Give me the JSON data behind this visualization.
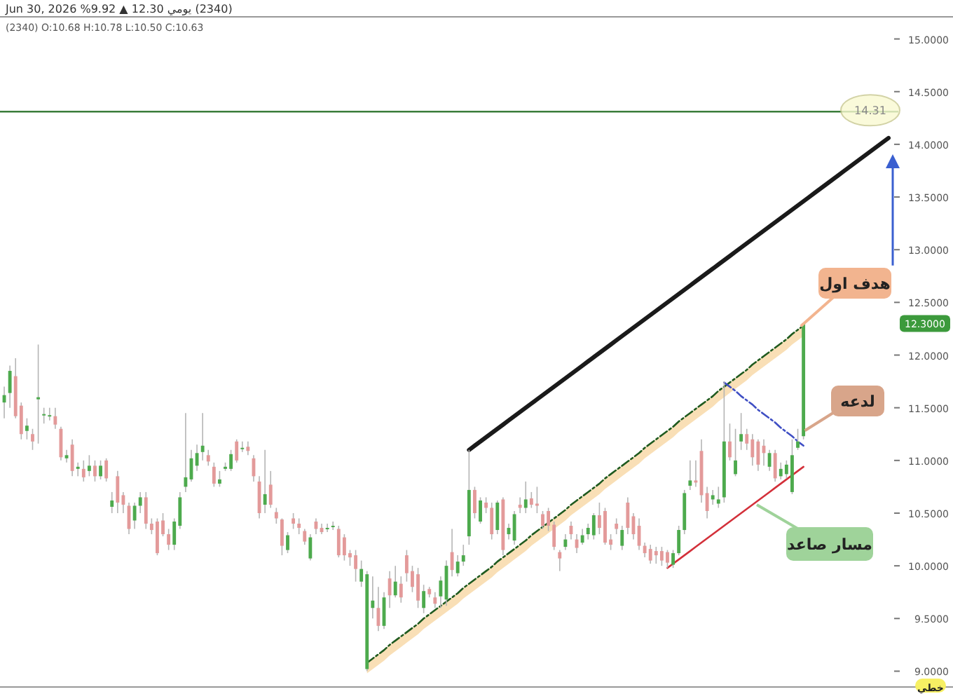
{
  "chart_data": {
    "type": "candlestick",
    "title": "(2340) يومي 12.30 ▲ 9.92% Jun 30, 2026",
    "subtitle": "(2340) O:10.68 H:10.78 L:10.50 C:10.63",
    "categories": [
      null,
      null,
      null,
      null,
      null,
      null,
      null,
      null,
      null,
      null,
      null,
      null,
      null,
      null,
      null,
      null,
      null,
      null,
      null,
      null,
      null,
      null,
      null,
      null,
      null,
      null,
      null,
      null,
      null,
      null,
      null,
      null,
      null,
      null,
      null,
      null,
      null,
      null,
      null,
      null,
      null,
      null,
      null,
      null,
      null,
      null,
      null,
      null,
      null,
      null,
      null,
      null,
      null,
      null,
      null,
      null,
      null,
      null,
      null,
      null,
      null,
      null,
      null,
      null,
      null,
      null,
      null,
      null,
      null,
      null,
      null,
      null,
      null,
      null,
      null,
      null,
      null,
      null,
      null,
      null,
      null,
      null,
      null,
      null,
      null,
      null,
      null,
      null,
      null,
      null,
      null,
      null,
      null,
      null,
      null,
      null,
      null,
      null,
      null,
      null,
      null,
      null,
      null,
      null,
      null,
      null,
      null,
      null,
      null,
      null,
      null,
      null,
      null,
      null,
      null,
      null,
      null,
      null,
      null,
      null,
      null,
      null,
      null,
      null,
      null,
      null,
      null,
      null,
      null,
      null,
      null,
      null,
      null,
      null,
      null,
      null,
      null,
      null,
      null,
      null,
      null,
      null,
      null,
      null,
      null,
      null,
      null,
      null,
      null,
      null,
      null,
      null,
      null,
      null,
      null,
      null,
      null
    ],
    "ohlc": [
      [
        11.55,
        11.7,
        11.4,
        11.62
      ],
      [
        11.64,
        11.9,
        11.5,
        11.85
      ],
      [
        11.8,
        11.97,
        11.4,
        11.42
      ],
      [
        11.52,
        11.55,
        11.2,
        11.25
      ],
      [
        11.28,
        11.4,
        11.2,
        11.33
      ],
      [
        11.25,
        11.3,
        11.1,
        11.18
      ],
      [
        11.58,
        12.1,
        11.16,
        11.6
      ],
      [
        11.43,
        11.5,
        11.35,
        11.44
      ],
      [
        11.43,
        11.5,
        11.38,
        11.43
      ],
      [
        11.42,
        11.5,
        11.3,
        11.34
      ],
      [
        11.3,
        11.32,
        11.0,
        11.03
      ],
      [
        11.02,
        11.1,
        10.98,
        11.05
      ],
      [
        11.15,
        11.2,
        10.85,
        10.9
      ],
      [
        10.92,
        10.98,
        10.85,
        10.94
      ],
      [
        10.92,
        11.0,
        10.8,
        10.84
      ],
      [
        10.9,
        11.05,
        10.85,
        10.95
      ],
      [
        10.95,
        11.0,
        10.8,
        10.85
      ],
      [
        10.85,
        11.0,
        10.82,
        10.95
      ],
      [
        11.0,
        11.02,
        10.8,
        10.83
      ],
      [
        10.56,
        10.7,
        10.5,
        10.62
      ],
      [
        10.85,
        10.9,
        10.5,
        10.6
      ],
      [
        10.67,
        10.7,
        10.5,
        10.58
      ],
      [
        10.57,
        10.6,
        10.3,
        10.35
      ],
      [
        10.43,
        10.6,
        10.35,
        10.57
      ],
      [
        10.57,
        10.7,
        10.5,
        10.65
      ],
      [
        10.65,
        10.7,
        10.35,
        10.4
      ],
      [
        10.4,
        10.45,
        10.3,
        10.34
      ],
      [
        10.42,
        10.45,
        10.1,
        10.12
      ],
      [
        10.43,
        10.5,
        10.28,
        10.3
      ],
      [
        10.3,
        10.35,
        10.15,
        10.2
      ],
      [
        10.2,
        10.45,
        10.15,
        10.42
      ],
      [
        10.38,
        10.7,
        10.35,
        10.65
      ],
      [
        10.75,
        11.45,
        10.7,
        10.84
      ],
      [
        10.82,
        11.1,
        10.8,
        11.02
      ],
      [
        10.95,
        11.15,
        10.9,
        11.07
      ],
      [
        11.08,
        11.45,
        11.0,
        11.14
      ],
      [
        11.05,
        11.1,
        10.95,
        10.99
      ],
      [
        10.94,
        10.98,
        10.75,
        10.78
      ],
      [
        10.78,
        10.9,
        10.75,
        10.82
      ],
      [
        10.92,
        10.98,
        10.9,
        10.94
      ],
      [
        10.92,
        11.1,
        10.9,
        11.06
      ],
      [
        11.18,
        11.2,
        10.98,
        11.0
      ],
      [
        11.12,
        11.18,
        11.08,
        11.12
      ],
      [
        11.13,
        11.18,
        11.05,
        11.09
      ],
      [
        11.02,
        11.05,
        10.8,
        10.85
      ],
      [
        10.8,
        10.85,
        10.45,
        10.5
      ],
      [
        10.58,
        11.1,
        10.5,
        10.68
      ],
      [
        10.77,
        10.9,
        10.55,
        10.58
      ],
      [
        10.51,
        10.55,
        10.4,
        10.45
      ],
      [
        10.44,
        10.45,
        10.1,
        10.19
      ],
      [
        10.15,
        10.32,
        10.12,
        10.29
      ],
      [
        10.45,
        10.5,
        10.35,
        10.4
      ],
      [
        10.4,
        10.45,
        10.3,
        10.36
      ],
      [
        10.33,
        10.35,
        10.2,
        10.23
      ],
      [
        10.07,
        10.3,
        10.05,
        10.27
      ],
      [
        10.42,
        10.45,
        10.3,
        10.35
      ],
      [
        10.36,
        10.4,
        10.3,
        10.32
      ],
      [
        10.36,
        10.4,
        10.32,
        10.36
      ],
      [
        10.38,
        10.42,
        10.34,
        10.38
      ],
      [
        10.35,
        10.38,
        10.08,
        10.1
      ],
      [
        10.27,
        10.3,
        10.05,
        10.1
      ],
      [
        10.12,
        10.15,
        10.0,
        10.08
      ],
      [
        10.1,
        10.15,
        9.85,
        9.97
      ],
      [
        9.85,
        10.05,
        9.8,
        9.97
      ],
      [
        9.02,
        9.95,
        9.0,
        9.92
      ],
      [
        9.6,
        9.9,
        9.5,
        9.67
      ],
      [
        9.6,
        9.8,
        9.38,
        9.43
      ],
      [
        9.43,
        9.75,
        9.4,
        9.7
      ],
      [
        9.88,
        9.95,
        9.6,
        9.72
      ],
      [
        9.72,
        10.0,
        9.7,
        9.85
      ],
      [
        9.83,
        9.9,
        9.65,
        9.7
      ],
      [
        10.1,
        10.15,
        9.85,
        9.93
      ],
      [
        9.95,
        10.0,
        9.75,
        9.8
      ],
      [
        9.92,
        9.98,
        9.6,
        9.67
      ],
      [
        9.6,
        9.82,
        9.55,
        9.76
      ],
      [
        9.78,
        9.8,
        9.7,
        9.73
      ],
      [
        9.7,
        9.75,
        9.6,
        9.64
      ],
      [
        9.71,
        9.9,
        9.6,
        9.86
      ],
      [
        9.68,
        10.05,
        9.62,
        10.0
      ],
      [
        10.13,
        10.35,
        9.9,
        9.96
      ],
      [
        9.93,
        10.1,
        9.9,
        10.04
      ],
      [
        10.04,
        10.2,
        10.0,
        10.1
      ],
      [
        10.28,
        11.1,
        10.2,
        10.72
      ],
      [
        10.72,
        10.75,
        10.45,
        10.5
      ],
      [
        10.42,
        10.65,
        10.4,
        10.62
      ],
      [
        10.6,
        10.65,
        10.5,
        10.55
      ],
      [
        10.55,
        10.6,
        10.25,
        10.3
      ],
      [
        10.34,
        10.62,
        10.3,
        10.6
      ],
      [
        10.63,
        10.65,
        10.1,
        10.15
      ],
      [
        10.3,
        10.4,
        10.25,
        10.36
      ],
      [
        10.24,
        10.52,
        10.2,
        10.49
      ],
      [
        10.58,
        10.65,
        10.5,
        10.55
      ],
      [
        10.55,
        10.8,
        10.5,
        10.63
      ],
      [
        10.64,
        10.7,
        10.55,
        10.58
      ],
      [
        10.59,
        10.75,
        10.5,
        10.57
      ],
      [
        10.49,
        10.52,
        10.35,
        10.38
      ],
      [
        10.52,
        10.55,
        10.33,
        10.38
      ],
      [
        10.39,
        10.42,
        10.15,
        10.18
      ],
      [
        10.13,
        10.15,
        9.95,
        10.07
      ],
      [
        10.18,
        10.3,
        10.15,
        10.25
      ],
      [
        10.38,
        10.42,
        10.25,
        10.3
      ],
      [
        10.25,
        10.3,
        10.12,
        10.17
      ],
      [
        10.22,
        10.35,
        10.2,
        10.29
      ],
      [
        10.3,
        10.4,
        10.25,
        10.36
      ],
      [
        10.29,
        10.5,
        10.25,
        10.48
      ],
      [
        10.48,
        10.6,
        10.3,
        10.36
      ],
      [
        10.52,
        10.55,
        10.2,
        10.22
      ],
      [
        10.25,
        10.3,
        10.15,
        10.2
      ],
      [
        10.4,
        10.45,
        10.3,
        10.35
      ],
      [
        10.19,
        10.38,
        10.15,
        10.34
      ],
      [
        10.6,
        10.65,
        10.3,
        10.36
      ],
      [
        10.47,
        10.5,
        10.25,
        10.3
      ],
      [
        10.38,
        10.45,
        10.15,
        10.19
      ],
      [
        10.19,
        10.22,
        10.08,
        10.12
      ],
      [
        10.16,
        10.2,
        10.02,
        10.05
      ],
      [
        10.14,
        10.18,
        10.02,
        10.1
      ],
      [
        10.14,
        10.18,
        10.0,
        10.05
      ],
      [
        10.13,
        10.15,
        9.98,
        10.03
      ],
      [
        10.01,
        10.15,
        9.98,
        10.12
      ],
      [
        10.12,
        10.38,
        10.1,
        10.34
      ],
      [
        10.34,
        10.72,
        10.3,
        10.69
      ],
      [
        10.76,
        11.0,
        10.72,
        10.81
      ],
      [
        10.81,
        11.0,
        10.75,
        10.79
      ],
      [
        11.09,
        11.2,
        10.6,
        10.67
      ],
      [
        10.69,
        10.75,
        10.45,
        10.52
      ],
      [
        10.63,
        10.72,
        10.58,
        10.67
      ],
      [
        10.59,
        10.75,
        10.55,
        10.63
      ],
      [
        10.65,
        11.75,
        10.6,
        11.18
      ],
      [
        11.18,
        11.35,
        11.0,
        11.03
      ],
      [
        10.87,
        11.3,
        10.85,
        11.0
      ],
      [
        11.18,
        11.45,
        11.1,
        11.25
      ],
      [
        11.25,
        11.3,
        11.1,
        11.16
      ],
      [
        11.2,
        11.25,
        10.95,
        11.03
      ],
      [
        11.18,
        11.2,
        10.9,
        10.96
      ],
      [
        11.14,
        11.2,
        10.95,
        11.07
      ],
      [
        10.94,
        11.1,
        10.9,
        11.07
      ],
      [
        11.07,
        11.1,
        10.8,
        10.83
      ],
      [
        10.85,
        10.98,
        10.82,
        10.92
      ],
      [
        10.87,
        11.0,
        10.83,
        10.96
      ],
      [
        10.7,
        11.2,
        10.68,
        11.05
      ],
      [
        11.12,
        11.3,
        11.1,
        11.18
      ],
      [
        11.23,
        12.3,
        11.2,
        12.3
      ],
      null,
      null,
      null,
      null,
      null,
      null,
      null,
      null,
      null,
      null,
      null,
      null,
      null,
      null,
      null
    ],
    "series": [
      {
        "type": "line",
        "color": "#1a1a1a",
        "line_style": "solid",
        "values": [
          null,
          null,
          null,
          null,
          null,
          null,
          null,
          null,
          null,
          null,
          null,
          null,
          null,
          null,
          null,
          null,
          null,
          null,
          null,
          null,
          null,
          null,
          null,
          null,
          null,
          null,
          null,
          null,
          null,
          null,
          null,
          null,
          null,
          null,
          null,
          null,
          null,
          null,
          null,
          null,
          null,
          null,
          null,
          null,
          null,
          null,
          null,
          null,
          null,
          null,
          null,
          null,
          null,
          null,
          null,
          null,
          null,
          null,
          null,
          null,
          null,
          null,
          null,
          null,
          null,
          null,
          null,
          null,
          null,
          null,
          null,
          null,
          null,
          null,
          null,
          null,
          null,
          null,
          null,
          null,
          null,
          null,
          11.1,
          11.14,
          11.18,
          11.22,
          11.26,
          11.3,
          11.34,
          11.38,
          11.42,
          11.46,
          11.5,
          11.54,
          11.58,
          11.62,
          11.66,
          11.7,
          11.74,
          11.78,
          11.82,
          11.86,
          11.9,
          11.94,
          11.98,
          12.02,
          12.06,
          12.1,
          12.14,
          12.18,
          12.22,
          12.26,
          12.3,
          12.34,
          12.38,
          12.42,
          12.46,
          12.5,
          12.54,
          12.58,
          12.62,
          12.66,
          12.7,
          12.74,
          12.78,
          12.82,
          12.86,
          12.9,
          12.94,
          12.98,
          13.02,
          13.06,
          13.1,
          13.14,
          13.18,
          13.22,
          13.26,
          13.3,
          13.34,
          13.38,
          13.42,
          13.46,
          13.5,
          13.54,
          13.58,
          13.62,
          13.66,
          13.7,
          13.74,
          13.78,
          13.82,
          13.86,
          13.9,
          13.94,
          13.98,
          14.02,
          14.06
        ]
      },
      {
        "type": "line",
        "color": "#1f5a1f",
        "line_style": "dashed",
        "values": [
          null,
          null,
          null,
          null,
          null,
          null,
          null,
          null,
          null,
          null,
          null,
          null,
          null,
          null,
          null,
          null,
          null,
          null,
          null,
          null,
          null,
          null,
          null,
          null,
          null,
          null,
          null,
          null,
          null,
          null,
          null,
          null,
          null,
          null,
          null,
          null,
          null,
          null,
          null,
          null,
          null,
          null,
          null,
          null,
          null,
          null,
          null,
          null,
          null,
          null,
          null,
          null,
          null,
          null,
          null,
          null,
          null,
          null,
          null,
          null,
          null,
          null,
          null,
          null,
          9.08,
          9.12,
          9.16,
          9.2,
          9.25,
          9.29,
          9.33,
          9.37,
          9.41,
          9.45,
          9.5,
          9.54,
          9.58,
          9.62,
          9.66,
          9.7,
          9.74,
          9.79,
          9.83,
          9.87,
          9.91,
          9.95,
          9.99,
          10.04,
          10.08,
          10.12,
          10.16,
          10.2,
          10.24,
          10.29,
          10.33,
          10.37,
          10.41,
          10.45,
          10.49,
          10.53,
          10.58,
          10.62,
          10.66,
          10.7,
          10.74,
          10.78,
          10.83,
          10.87,
          10.91,
          10.95,
          10.99,
          11.03,
          11.07,
          11.12,
          11.16,
          11.2,
          11.24,
          11.28,
          11.32,
          11.37,
          11.41,
          11.45,
          11.49,
          11.53,
          11.57,
          11.61,
          11.66,
          11.7,
          11.74,
          11.78,
          11.82,
          11.86,
          11.91,
          11.95,
          11.99,
          12.03,
          12.07,
          12.11,
          12.15,
          12.2,
          12.24,
          12.28,
          null,
          null,
          null,
          null,
          null,
          null,
          null,
          null,
          null,
          null,
          null,
          null,
          null,
          null,
          null
        ],
        "lower": [
          null,
          null,
          null,
          null,
          null,
          null,
          null,
          null,
          null,
          null,
          null,
          null,
          null,
          null,
          null,
          null,
          null,
          null,
          null,
          null,
          null,
          null,
          null,
          null,
          null,
          null,
          null,
          null,
          null,
          null,
          null,
          null,
          null,
          null,
          null,
          null,
          null,
          null,
          null,
          null,
          null,
          null,
          null,
          null,
          null,
          null,
          null,
          null,
          null,
          null,
          null,
          null,
          null,
          null,
          null,
          null,
          null,
          null,
          null,
          null,
          null,
          null,
          null,
          null,
          8.98,
          9.02,
          9.06,
          9.1,
          9.15,
          9.19,
          9.23,
          9.27,
          9.31,
          9.35,
          9.4,
          9.44,
          9.48,
          9.52,
          9.56,
          9.6,
          9.64,
          9.69,
          9.73,
          9.77,
          9.81,
          9.85,
          9.89,
          9.94,
          9.98,
          10.02,
          10.06,
          10.1,
          10.14,
          10.19,
          10.23,
          10.27,
          10.31,
          10.35,
          10.39,
          10.43,
          10.48,
          10.52,
          10.56,
          10.6,
          10.64,
          10.68,
          10.73,
          10.77,
          10.81,
          10.85,
          10.89,
          10.93,
          10.97,
          11.02,
          11.06,
          11.1,
          11.14,
          11.18,
          11.22,
          11.27,
          11.31,
          11.35,
          11.39,
          11.43,
          11.47,
          11.51,
          11.56,
          11.6,
          11.64,
          11.68,
          11.72,
          11.76,
          11.81,
          11.85,
          11.89,
          11.93,
          11.97,
          12.01,
          12.05,
          12.1,
          12.14,
          12.18,
          null,
          null,
          null,
          null,
          null,
          null,
          null,
          null,
          null,
          null,
          null,
          null,
          null,
          null,
          null
        ],
        "upper": [
          null,
          null,
          null,
          null,
          null,
          null,
          null,
          null,
          null,
          null,
          null,
          null,
          null,
          null,
          null,
          null,
          null,
          null,
          null,
          null,
          null,
          null,
          null,
          null,
          null,
          null,
          null,
          null,
          null,
          null,
          null,
          null,
          null,
          null,
          null,
          null,
          null,
          null,
          null,
          null,
          null,
          null,
          null,
          null,
          null,
          null,
          null,
          null,
          null,
          null,
          null,
          null,
          null,
          null,
          null,
          null,
          null,
          null,
          null,
          null,
          null,
          null,
          null,
          null,
          9.08,
          9.12,
          9.16,
          9.2,
          9.25,
          9.29,
          9.33,
          9.37,
          9.41,
          9.45,
          9.5,
          9.54,
          9.58,
          9.62,
          9.66,
          9.7,
          9.74,
          9.79,
          9.83,
          9.87,
          9.91,
          9.95,
          9.99,
          10.04,
          10.08,
          10.12,
          10.16,
          10.2,
          10.24,
          10.29,
          10.33,
          10.37,
          10.41,
          10.45,
          10.49,
          10.53,
          10.58,
          10.62,
          10.66,
          10.7,
          10.74,
          10.78,
          10.83,
          10.87,
          10.91,
          10.95,
          10.99,
          11.03,
          11.07,
          11.12,
          11.16,
          11.2,
          11.24,
          11.28,
          11.32,
          11.37,
          11.41,
          11.45,
          11.49,
          11.53,
          11.57,
          11.61,
          11.66,
          11.7,
          11.74,
          11.78,
          11.82,
          11.86,
          11.91,
          11.95,
          11.99,
          12.03,
          12.07,
          12.11,
          12.15,
          12.2,
          12.24,
          12.28,
          null,
          null,
          null,
          null,
          null,
          null,
          null,
          null,
          null,
          null,
          null,
          null,
          null,
          null,
          null
        ]
      },
      {
        "type": "line",
        "color": "#3f4fc4",
        "line_style": "dashed",
        "values": [
          null,
          null,
          null,
          null,
          null,
          null,
          null,
          null,
          null,
          null,
          null,
          null,
          null,
          null,
          null,
          null,
          null,
          null,
          null,
          null,
          null,
          null,
          null,
          null,
          null,
          null,
          null,
          null,
          null,
          null,
          null,
          null,
          null,
          null,
          null,
          null,
          null,
          null,
          null,
          null,
          null,
          null,
          null,
          null,
          null,
          null,
          null,
          null,
          null,
          null,
          null,
          null,
          null,
          null,
          null,
          null,
          null,
          null,
          null,
          null,
          null,
          null,
          null,
          null,
          null,
          null,
          null,
          null,
          null,
          null,
          null,
          null,
          null,
          null,
          null,
          null,
          null,
          null,
          null,
          null,
          null,
          null,
          null,
          null,
          null,
          null,
          null,
          null,
          null,
          null,
          null,
          null,
          null,
          null,
          null,
          null,
          null,
          null,
          null,
          null,
          null,
          null,
          null,
          null,
          null,
          null,
          null,
          null,
          null,
          null,
          null,
          null,
          null,
          null,
          null,
          null,
          null,
          null,
          null,
          null,
          null,
          null,
          null,
          null,
          null,
          null,
          null,
          11.74,
          11.7,
          11.66,
          11.61,
          11.57,
          11.53,
          11.48,
          11.44,
          11.4,
          11.36,
          11.31,
          11.27,
          11.23,
          11.18,
          11.14,
          null,
          null,
          null,
          null,
          null,
          null,
          null,
          null,
          null,
          null,
          null,
          null,
          null,
          null,
          null
        ]
      },
      {
        "type": "line",
        "color": "#d3303a",
        "line_style": "solid",
        "values": [
          null,
          null,
          null,
          null,
          null,
          null,
          null,
          null,
          null,
          null,
          null,
          null,
          null,
          null,
          null,
          null,
          null,
          null,
          null,
          null,
          null,
          null,
          null,
          null,
          null,
          null,
          null,
          null,
          null,
          null,
          null,
          null,
          null,
          null,
          null,
          null,
          null,
          null,
          null,
          null,
          null,
          null,
          null,
          null,
          null,
          null,
          null,
          null,
          null,
          null,
          null,
          null,
          null,
          null,
          null,
          null,
          null,
          null,
          null,
          null,
          null,
          null,
          null,
          null,
          null,
          null,
          null,
          null,
          null,
          null,
          null,
          null,
          null,
          null,
          null,
          null,
          null,
          null,
          null,
          null,
          null,
          null,
          null,
          null,
          null,
          null,
          null,
          null,
          null,
          null,
          null,
          null,
          null,
          null,
          null,
          null,
          null,
          null,
          null,
          null,
          null,
          null,
          null,
          null,
          null,
          null,
          null,
          null,
          null,
          null,
          null,
          null,
          null,
          null,
          null,
          null,
          null,
          9.98,
          10.02,
          10.06,
          10.1,
          10.14,
          10.18,
          10.22,
          10.26,
          10.3,
          10.34,
          10.38,
          10.42,
          10.46,
          10.5,
          10.54,
          10.58,
          10.62,
          10.66,
          10.7,
          10.74,
          10.78,
          10.82,
          10.86,
          10.9,
          10.94,
          null,
          null,
          null,
          null,
          null,
          null,
          null,
          null,
          null,
          null,
          null,
          null,
          null,
          null,
          null
        ]
      }
    ],
    "ylim": [
      8.85,
      15.21
    ],
    "yticks": [
      {
        "value": 9,
        "label": "9.0000"
      },
      {
        "value": 9.5,
        "label": "9.5000"
      },
      {
        "value": 10,
        "label": "10.0000"
      },
      {
        "value": 10.5,
        "label": "10.5000"
      },
      {
        "value": 11,
        "label": "11.0000"
      },
      {
        "value": 11.5,
        "label": "11.5000"
      },
      {
        "value": 12,
        "label": "12.0000"
      },
      {
        "value": 12.5,
        "label": "12.5000"
      },
      {
        "value": 13,
        "label": "13.0000"
      },
      {
        "value": 13.5,
        "label": "13.5000"
      },
      {
        "value": 14,
        "label": "14.0000"
      },
      {
        "value": 14.5,
        "label": "14.5000"
      },
      {
        "value": 15,
        "label": "15.0000"
      }
    ],
    "ref_lines": [
      {
        "axis": "y",
        "value": 14.31,
        "label": "14.31",
        "color": "#3a7d3a"
      }
    ],
    "annotations": [
      "هدف اول",
      "لدعه",
      "مسار صاعد",
      "خطي",
      {
        "text": "12.3000",
        "y": 12.3
      }
    ]
  }
}
